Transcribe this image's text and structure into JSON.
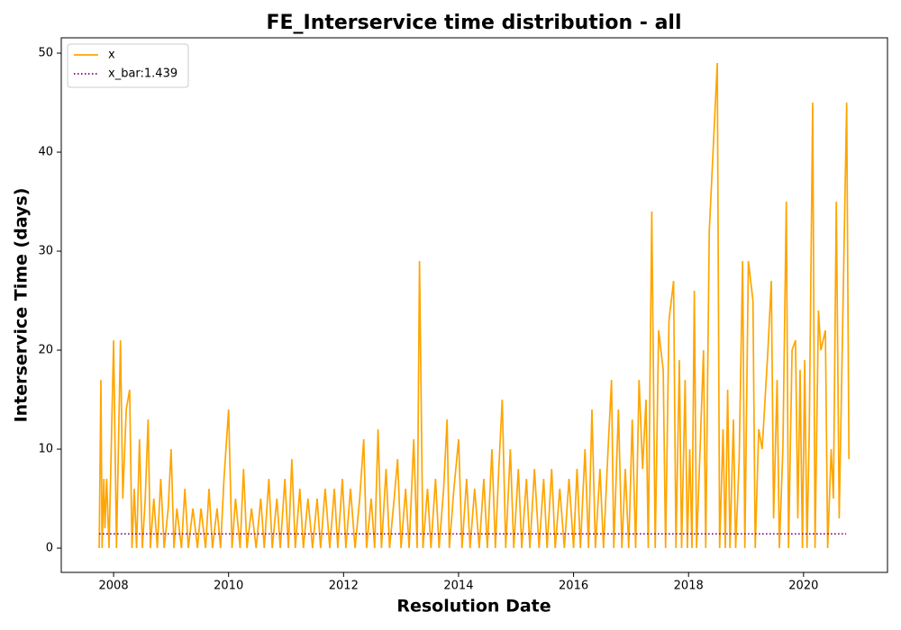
{
  "chart_data": {
    "type": "line",
    "title": "FE_Interservice time distribution - all",
    "xlabel": "Resolution Date",
    "ylabel": "Interservice Time (days)",
    "xlim": [
      2007.09,
      2021.46
    ],
    "xticks": [
      2008,
      2010,
      2012,
      2014,
      2016,
      2018,
      2020
    ],
    "ylim": [
      -2.45,
      51.55
    ],
    "yticks": [
      0,
      10,
      20,
      30,
      40,
      50
    ],
    "legend": "upper left",
    "series": [
      {
        "name": "x",
        "color": "#ffa500",
        "style": "solid",
        "x": [
          2007.75,
          2007.78,
          2007.8,
          2007.83,
          2007.85,
          2007.88,
          2007.92,
          2008.0,
          2008.05,
          2008.12,
          2008.16,
          2008.22,
          2008.28,
          2008.32,
          2008.36,
          2008.4,
          2008.45,
          2008.5,
          2008.55,
          2008.6,
          2008.64,
          2008.7,
          2008.76,
          2008.82,
          2008.88,
          2008.95,
          2009.0,
          2009.05,
          2009.1,
          2009.18,
          2009.24,
          2009.3,
          2009.38,
          2009.46,
          2009.52,
          2009.6,
          2009.66,
          2009.72,
          2009.8,
          2009.86,
          2009.92,
          2010.0,
          2010.06,
          2010.12,
          2010.2,
          2010.26,
          2010.32,
          2010.4,
          2010.48,
          2010.56,
          2010.62,
          2010.7,
          2010.76,
          2010.84,
          2010.9,
          2010.98,
          2011.04,
          2011.1,
          2011.16,
          2011.24,
          2011.3,
          2011.38,
          2011.46,
          2011.54,
          2011.6,
          2011.68,
          2011.76,
          2011.84,
          2011.9,
          2011.98,
          2012.04,
          2012.12,
          2012.2,
          2012.28,
          2012.35,
          2012.4,
          2012.48,
          2012.54,
          2012.6,
          2012.66,
          2012.74,
          2012.8,
          2012.88,
          2012.94,
          2013.0,
          2013.08,
          2013.14,
          2013.22,
          2013.28,
          2013.32,
          2013.38,
          2013.46,
          2013.52,
          2013.6,
          2013.66,
          2013.74,
          2013.8,
          2013.84,
          2013.92,
          2014.0,
          2014.06,
          2014.14,
          2014.2,
          2014.28,
          2014.36,
          2014.44,
          2014.5,
          2014.58,
          2014.64,
          2014.7,
          2014.76,
          2014.82,
          2014.9,
          2014.96,
          2015.04,
          2015.1,
          2015.18,
          2015.24,
          2015.32,
          2015.4,
          2015.48,
          2015.54,
          2015.62,
          2015.68,
          2015.76,
          2015.84,
          2015.92,
          2016.0,
          2016.06,
          2016.12,
          2016.2,
          2016.26,
          2016.32,
          2016.38,
          2016.46,
          2016.52,
          2016.6,
          2016.66,
          2016.7,
          2016.78,
          2016.84,
          2016.9,
          2016.96,
          2017.02,
          2017.08,
          2017.14,
          2017.2,
          2017.26,
          2017.3,
          2017.36,
          2017.42,
          2017.48,
          2017.56,
          2017.6,
          2017.66,
          2017.74,
          2017.78,
          2017.84,
          2017.88,
          2017.94,
          2017.98,
          2018.02,
          2018.06,
          2018.1,
          2018.14,
          2018.2,
          2018.26,
          2018.3,
          2018.36,
          2018.5,
          2018.54,
          2018.6,
          2018.64,
          2018.68,
          2018.72,
          2018.78,
          2018.82,
          2018.88,
          2018.94,
          2018.98,
          2019.04,
          2019.12,
          2019.16,
          2019.22,
          2019.28,
          2019.38,
          2019.44,
          2019.48,
          2019.54,
          2019.58,
          2019.64,
          2019.7,
          2019.74,
          2019.8,
          2019.86,
          2019.9,
          2019.94,
          2019.98,
          2020.02,
          2020.06,
          2020.1,
          2020.16,
          2020.2,
          2020.26,
          2020.3,
          2020.38,
          2020.42,
          2020.48,
          2020.52,
          2020.57,
          2020.62,
          2020.75,
          2020.79
        ],
        "values": [
          0,
          17,
          0,
          7,
          2,
          7,
          0,
          21,
          0,
          21,
          5,
          14,
          16,
          0,
          6,
          0,
          11,
          0,
          5,
          13,
          0,
          5,
          0,
          7,
          0,
          4,
          10,
          0,
          4,
          0,
          6,
          0,
          4,
          0,
          4,
          0,
          6,
          0,
          4,
          0,
          7,
          14,
          0,
          5,
          0,
          8,
          0,
          4,
          0,
          5,
          0,
          7,
          0,
          5,
          0,
          7,
          0,
          9,
          0,
          6,
          0,
          5,
          0,
          5,
          0,
          6,
          0,
          6,
          0,
          7,
          0,
          6,
          0,
          5,
          11,
          0,
          5,
          0,
          12,
          0,
          8,
          0,
          5,
          9,
          0,
          6,
          0,
          11,
          0,
          29,
          0,
          6,
          0,
          7,
          0,
          6,
          13,
          0,
          6,
          11,
          0,
          7,
          0,
          6,
          0,
          7,
          0,
          10,
          0,
          8,
          15,
          0,
          10,
          0,
          8,
          0,
          7,
          0,
          8,
          0,
          7,
          0,
          8,
          0,
          6,
          0,
          7,
          0,
          8,
          0,
          10,
          0,
          14,
          0,
          8,
          0,
          10,
          17,
          0,
          14,
          0,
          8,
          0,
          13,
          0,
          17,
          8,
          15,
          0,
          34,
          0,
          22,
          18,
          0,
          23,
          27,
          0,
          19,
          0,
          17,
          0,
          10,
          0,
          26,
          0,
          10,
          20,
          0,
          32,
          49,
          0,
          12,
          0,
          16,
          0,
          13,
          0,
          9,
          29,
          0,
          29,
          25,
          0,
          12,
          10,
          20,
          27,
          3,
          17,
          0,
          10,
          35,
          0,
          20,
          21,
          3,
          18,
          0,
          19,
          0,
          12,
          45,
          0,
          24,
          20,
          22,
          0,
          10,
          5,
          35,
          3,
          45,
          9
        ]
      },
      {
        "name": "x_bar:1.439",
        "color": "#800080",
        "style": "dotted",
        "x": [
          2007.75,
          2020.74
        ],
        "values": [
          1.439,
          1.439
        ]
      }
    ]
  }
}
